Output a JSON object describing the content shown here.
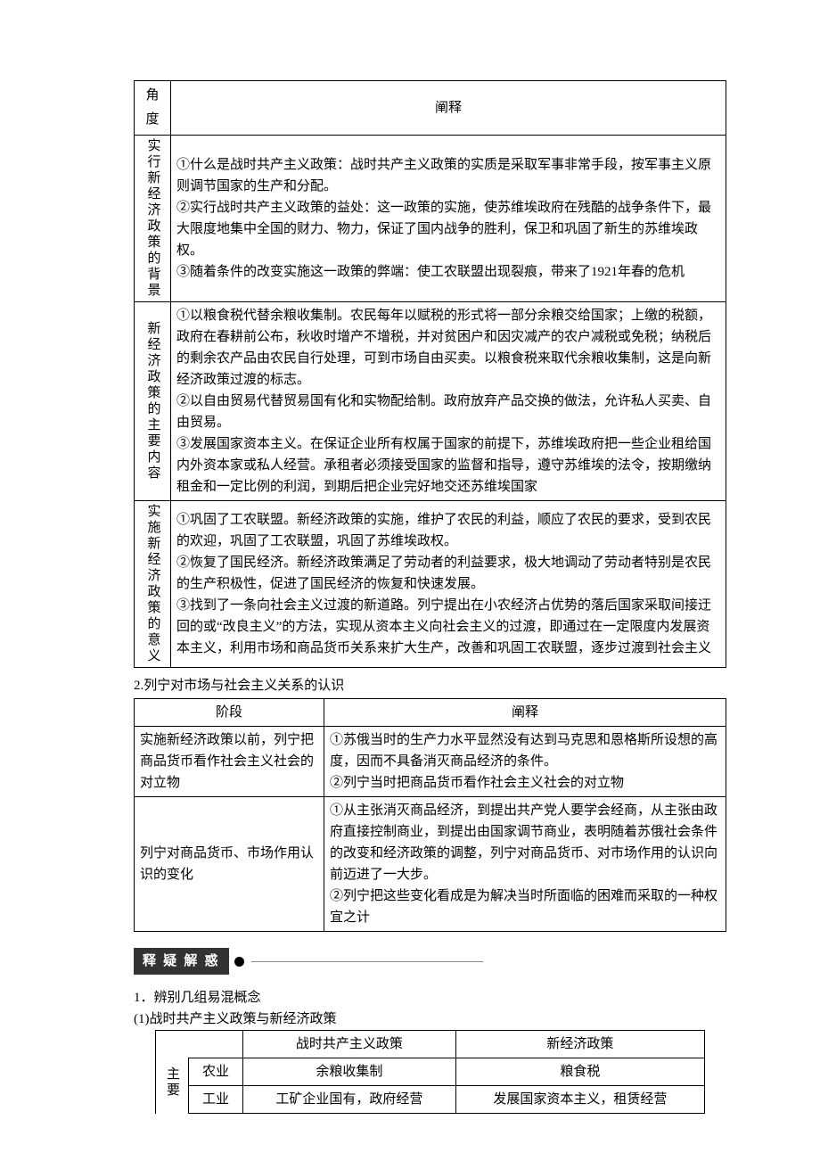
{
  "table1": {
    "h1": "角度",
    "h2": "阐释",
    "r1": {
      "label": "实行新经济政策的背景",
      "text": "①什么是战时共产主义政策：战时共产主义政策的实质是采取军事非常手段，按军事主义原则调节国家的生产和分配。\n②实行战时共产主义政策的益处：这一政策的实施，使苏维埃政府在残酷的战争条件下，最大限度地集中全国的财力、物力，保证了国内战争的胜利，保卫和巩固了新生的苏维埃政权。\n③随着条件的改变实施这一政策的弊端：使工农联盟出现裂痕，带来了1921年春的危机"
    },
    "r2": {
      "label": "新经济政策的主要内容",
      "text": "①以粮食税代替余粮收集制。农民每年以赋税的形式将一部分余粮交给国家；上缴的税额，政府在春耕前公布，秋收时增产不增税，并对贫困户和因灾减产的农户减税或免税；纳税后的剩余农产品由农民自行处理，可到市场自由买卖。以粮食税来取代余粮收集制，这是向新经济政策过渡的标志。\n②以自由贸易代替贸易国有化和实物配给制。政府放弃产品交换的做法，允许私人买卖、自由贸易。\n③发展国家资本主义。在保证企业所有权属于国家的前提下，苏维埃政府把一些企业租给国内外资本家或私人经营。承租者必须接受国家的监督和指导，遵守苏维埃的法令，按期缴纳租金和一定比例的利润，到期后把企业完好地交还苏维埃国家"
    },
    "r3": {
      "label": "实施新经济政策的意义",
      "text": "①巩固了工农联盟。新经济政策的实施，维护了农民的利益，顺应了农民的要求，受到农民的欢迎，巩固了工农联盟，巩固了苏维埃政权。\n②恢复了国民经济。新经济政策满足了劳动者的利益要求，极大地调动了劳动者特别是农民的生产积极性，促进了国民经济的恢复和快速发展。\n③找到了一条向社会主义过渡的新道路。列宁提出在小农经济占优势的落后国家采取间接迂回的或“改良主义”的方法，实现从资本主义向社会主义的过渡，即通过在一定限度内发展资本主义，利用市场和商品货币关系来扩大生产，改善和巩固工农联盟，逐步过渡到社会主义"
    }
  },
  "section2": "2.列宁对市场与社会主义关系的认识",
  "table2": {
    "h1": "阶段",
    "h2": "阐释",
    "r1": {
      "stage": "实施新经济政策以前，列宁把商品货币看作社会主义社会的对立物",
      "text": "①苏俄当时的生产力水平显然没有达到马克思和恩格斯所设想的高度，因而不具备消灭商品经济的条件。\n②列宁当时把商品货币看作社会主义社会的对立物"
    },
    "r2": {
      "stage": "列宁对商品货币、市场作用认识的变化",
      "text": "①从主张消灭商品经济，到提出共产党人要学会经商，从主张由政府直接控制商业，到提出由国家调节商业，表明随着苏俄社会条件的改变和经济政策的调整，列宁对商品货币、对市场作用的认识向前迈进了一大步。\n②列宁把这些变化看成是为解决当时所面临的困难而采取的一种权宜之计"
    }
  },
  "tag": "释 疑 解 惑",
  "p1": "1．辨别几组易混概念",
  "p2": "(1)战时共产主义政策与新经济政策",
  "table3": {
    "h0": "",
    "h1": "战时共产主义政策",
    "h2": "新经济政策",
    "side": "主要",
    "r1": {
      "cat": "农业",
      "a": "余粮收集制",
      "b": "粮食税"
    },
    "r2": {
      "cat": "工业",
      "a": "工矿企业国有，政府经营",
      "b": "发展国家资本主义，租赁经营"
    }
  }
}
